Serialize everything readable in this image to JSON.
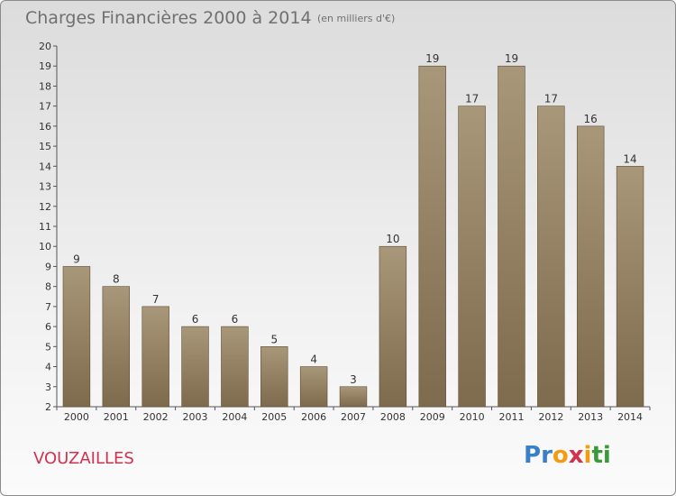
{
  "header": {
    "title": "Charges Financières 2000 à 2014",
    "unit_note": "(en milliers d'€)"
  },
  "footer": {
    "commune": "VOUZAILLES",
    "logo_letters": [
      "P",
      "r",
      "o",
      "x",
      "i",
      "t",
      "i"
    ],
    "logo_colors": [
      "#3a7fc9",
      "#3a7fc9",
      "#f39c12",
      "#d2314f",
      "#f39c12",
      "#3a9a3a",
      "#3a9a3a"
    ]
  },
  "colors": {
    "bar_light": "#a99779",
    "bar_dark": "#7e6a4c",
    "commune_text": "#d2314f",
    "title_text": "#707070"
  },
  "chart_data": {
    "type": "bar",
    "title": "Charges Financières 2000 à 2014",
    "subtitle": "(en milliers d'€)",
    "xlabel": "",
    "ylabel": "",
    "categories": [
      "2000",
      "2001",
      "2002",
      "2003",
      "2004",
      "2005",
      "2006",
      "2007",
      "2008",
      "2009",
      "2010",
      "2011",
      "2012",
      "2013",
      "2014"
    ],
    "values": [
      9,
      8,
      7,
      6,
      6,
      5,
      4,
      3,
      10,
      19,
      17,
      19,
      17,
      16,
      14
    ],
    "ylim": [
      2,
      20
    ],
    "yticks": [
      2,
      3,
      4,
      5,
      6,
      7,
      8,
      9,
      10,
      11,
      12,
      13,
      14,
      15,
      16,
      17,
      18,
      19,
      20
    ],
    "grid": false,
    "legend": "none"
  }
}
